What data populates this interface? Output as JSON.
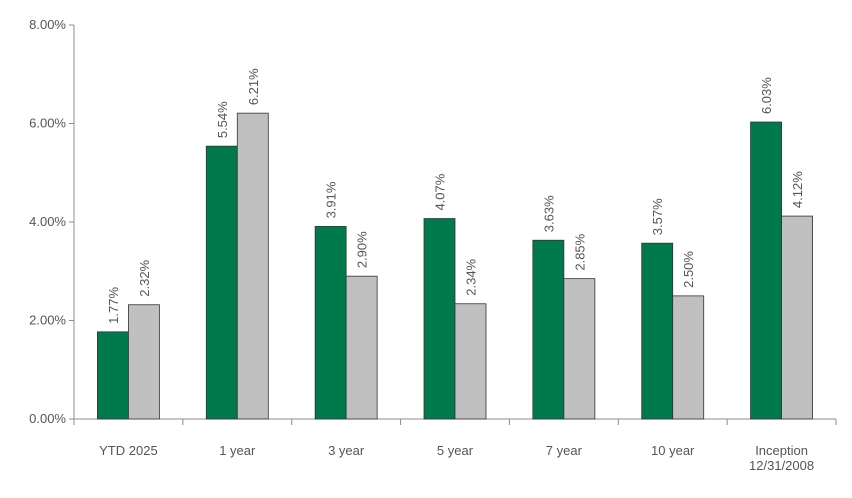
{
  "colors": {
    "series_1": "#007a4d",
    "series_2": "#c0c0c0",
    "axis": "#8c8c8c",
    "text": "#555555",
    "bar_stroke": "#333333"
  },
  "chart_data": {
    "type": "bar",
    "title": "",
    "xlabel": "",
    "ylabel": "",
    "ylim": [
      0,
      8
    ],
    "yticks": [
      0,
      2,
      4,
      6,
      8
    ],
    "ytick_labels": [
      "0.00%",
      "2.00%",
      "4.00%",
      "6.00%",
      "8.00%"
    ],
    "grid": false,
    "legend": "none",
    "categories": [
      [
        "YTD 2025"
      ],
      [
        "1 year"
      ],
      [
        "3 year"
      ],
      [
        "5 year"
      ],
      [
        "7 year"
      ],
      [
        "10 year"
      ],
      [
        "Inception",
        "12/31/2008"
      ]
    ],
    "series": [
      {
        "values": [
          1.77,
          5.54,
          3.91,
          4.07,
          3.63,
          3.57,
          6.03
        ],
        "labels": [
          "1.77%",
          "5.54%",
          "3.91%",
          "4.07%",
          "3.63%",
          "3.57%",
          "6.03%"
        ]
      },
      {
        "values": [
          2.32,
          6.21,
          2.9,
          2.34,
          2.85,
          2.5,
          4.12
        ],
        "labels": [
          "2.32%",
          "6.21%",
          "2.90%",
          "2.34%",
          "2.85%",
          "2.50%",
          "4.12%"
        ]
      }
    ]
  }
}
